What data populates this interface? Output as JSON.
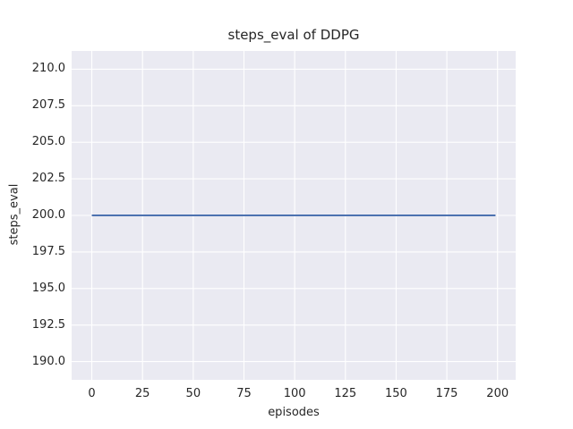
{
  "chart_data": {
    "type": "line",
    "title": "steps_eval of DDPG",
    "xlabel": "episodes",
    "ylabel": "steps_eval",
    "x_ticks": [
      0,
      25,
      50,
      75,
      100,
      125,
      150,
      175,
      200
    ],
    "x_tick_labels": [
      "0",
      "25",
      "50",
      "75",
      "100",
      "125",
      "150",
      "175",
      "200"
    ],
    "y_ticks": [
      190.0,
      192.5,
      195.0,
      197.5,
      200.0,
      202.5,
      205.0,
      207.5,
      210.0
    ],
    "y_tick_labels": [
      "190.0",
      "192.5",
      "195.0",
      "197.5",
      "200.0",
      "202.5",
      "205.0",
      "207.5",
      "210.0"
    ],
    "xlim": [
      -9.95,
      208.95
    ],
    "ylim": [
      188.75,
      211.25
    ],
    "grid": true,
    "legend_position": "none",
    "series": [
      {
        "name": "steps_eval",
        "x": [
          0,
          199
        ],
        "y": [
          200.0,
          200.0
        ],
        "color": "#4c72b0"
      }
    ],
    "colors": {
      "figure_background": "#ffffff",
      "axes_background": "#eaeaf2",
      "grid": "#ffffff",
      "text": "#262626"
    }
  }
}
